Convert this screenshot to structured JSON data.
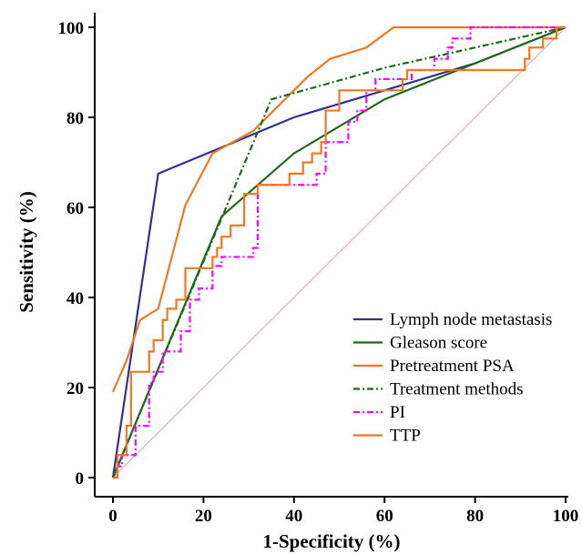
{
  "chart_data": {
    "type": "line",
    "xlabel": "1-Specificity (%)",
    "ylabel": "Sensitivity (%)",
    "xlim": [
      0,
      100
    ],
    "ylim": [
      0,
      100
    ],
    "xticks": [
      0,
      20,
      40,
      60,
      80,
      100
    ],
    "yticks": [
      0,
      20,
      40,
      60,
      80,
      100
    ],
    "grid": false,
    "legend": "bottom-right",
    "reference_line": {
      "points": [
        [
          0,
          0
        ],
        [
          100,
          100
        ]
      ],
      "color": "#e0a0a8"
    },
    "series": [
      {
        "name": "Lymph node metastasis",
        "color": "#2e3192",
        "style": "solid",
        "points": [
          [
            0,
            0
          ],
          [
            10,
            67.5
          ],
          [
            22,
            72.5
          ],
          [
            40,
            80
          ],
          [
            60,
            86
          ],
          [
            80,
            92
          ],
          [
            100,
            100
          ]
        ]
      },
      {
        "name": "Gleason score",
        "color": "#1a6b1a",
        "style": "solid",
        "points": [
          [
            0,
            0
          ],
          [
            24,
            58
          ],
          [
            40,
            72
          ],
          [
            60,
            84
          ],
          [
            80,
            92
          ],
          [
            100,
            100
          ]
        ]
      },
      {
        "name": "Pretreatment PSA",
        "color": "#f07820",
        "style": "solid",
        "points": [
          [
            0,
            19
          ],
          [
            3,
            26
          ],
          [
            6,
            35
          ],
          [
            10,
            37.5
          ],
          [
            16,
            60.5
          ],
          [
            22,
            72
          ],
          [
            31,
            77
          ],
          [
            35,
            81
          ],
          [
            43,
            89
          ],
          [
            48,
            93
          ],
          [
            56,
            95.5
          ],
          [
            62,
            100
          ],
          [
            100,
            100
          ]
        ]
      },
      {
        "name": "Treatment methods",
        "color": "#1a6b1a",
        "style": "dashdot",
        "points": [
          [
            0,
            0
          ],
          [
            35,
            84
          ],
          [
            60,
            91
          ],
          [
            100,
            100
          ]
        ]
      },
      {
        "name": "PI",
        "color": "#ff00ff",
        "style": "dashdot",
        "points": [
          [
            0,
            0
          ],
          [
            1,
            0
          ],
          [
            1,
            2.5
          ],
          [
            2,
            2.5
          ],
          [
            2,
            5
          ],
          [
            5,
            5
          ],
          [
            5,
            11.5
          ],
          [
            8,
            11.5
          ],
          [
            8,
            21
          ],
          [
            9,
            21
          ],
          [
            9,
            23.5
          ],
          [
            11,
            23.5
          ],
          [
            11,
            28
          ],
          [
            15,
            28
          ],
          [
            15,
            32.5
          ],
          [
            17,
            32.5
          ],
          [
            17,
            39.5
          ],
          [
            19,
            39.5
          ],
          [
            19,
            42
          ],
          [
            22,
            42
          ],
          [
            22,
            47
          ],
          [
            24,
            47
          ],
          [
            24,
            49
          ],
          [
            31,
            49
          ],
          [
            31,
            51
          ],
          [
            32,
            51
          ],
          [
            32,
            65
          ],
          [
            45,
            65
          ],
          [
            45,
            67.5
          ],
          [
            47,
            67.5
          ],
          [
            47,
            74.5
          ],
          [
            52,
            74.5
          ],
          [
            52,
            79
          ],
          [
            54,
            79
          ],
          [
            54,
            81.5
          ],
          [
            56,
            81.5
          ],
          [
            56,
            86
          ],
          [
            58,
            86
          ],
          [
            58,
            88.5
          ],
          [
            66,
            88.5
          ],
          [
            66,
            90.5
          ],
          [
            71,
            90.5
          ],
          [
            71,
            93
          ],
          [
            74,
            93
          ],
          [
            74,
            95.5
          ],
          [
            75,
            95.5
          ],
          [
            75,
            97.5
          ],
          [
            79,
            97.5
          ],
          [
            79,
            100
          ],
          [
            100,
            100
          ]
        ]
      },
      {
        "name": "TTP",
        "color": "#f07820",
        "style": "solid",
        "points": [
          [
            0,
            0
          ],
          [
            1,
            0
          ],
          [
            1,
            5
          ],
          [
            3,
            5
          ],
          [
            3,
            11.5
          ],
          [
            4,
            11.5
          ],
          [
            4,
            23.5
          ],
          [
            8,
            23.5
          ],
          [
            8,
            28
          ],
          [
            9,
            28
          ],
          [
            9,
            30.5
          ],
          [
            11,
            30.5
          ],
          [
            11,
            35
          ],
          [
            12,
            35
          ],
          [
            12,
            37.5
          ],
          [
            14,
            37.5
          ],
          [
            14,
            39.5
          ],
          [
            16,
            39.5
          ],
          [
            16,
            46.5
          ],
          [
            22,
            46.5
          ],
          [
            22,
            49
          ],
          [
            23,
            49
          ],
          [
            23,
            51
          ],
          [
            24,
            51
          ],
          [
            24,
            53.5
          ],
          [
            26,
            53.5
          ],
          [
            26,
            56
          ],
          [
            29,
            56
          ],
          [
            29,
            63
          ],
          [
            32,
            63
          ],
          [
            32,
            65
          ],
          [
            39,
            65
          ],
          [
            39,
            67.5
          ],
          [
            42,
            67.5
          ],
          [
            42,
            70
          ],
          [
            44,
            70
          ],
          [
            44,
            72
          ],
          [
            46,
            72
          ],
          [
            46,
            74.5
          ],
          [
            47,
            74.5
          ],
          [
            47,
            81.5
          ],
          [
            50,
            81.5
          ],
          [
            50,
            86
          ],
          [
            64,
            86
          ],
          [
            64,
            88.5
          ],
          [
            65,
            88.5
          ],
          [
            65,
            90.5
          ],
          [
            91,
            90.5
          ],
          [
            91,
            93
          ],
          [
            92,
            93
          ],
          [
            92,
            95.5
          ],
          [
            95,
            95.5
          ],
          [
            95,
            97.5
          ],
          [
            98,
            97.5
          ],
          [
            98,
            100
          ],
          [
            100,
            100
          ]
        ]
      }
    ]
  }
}
